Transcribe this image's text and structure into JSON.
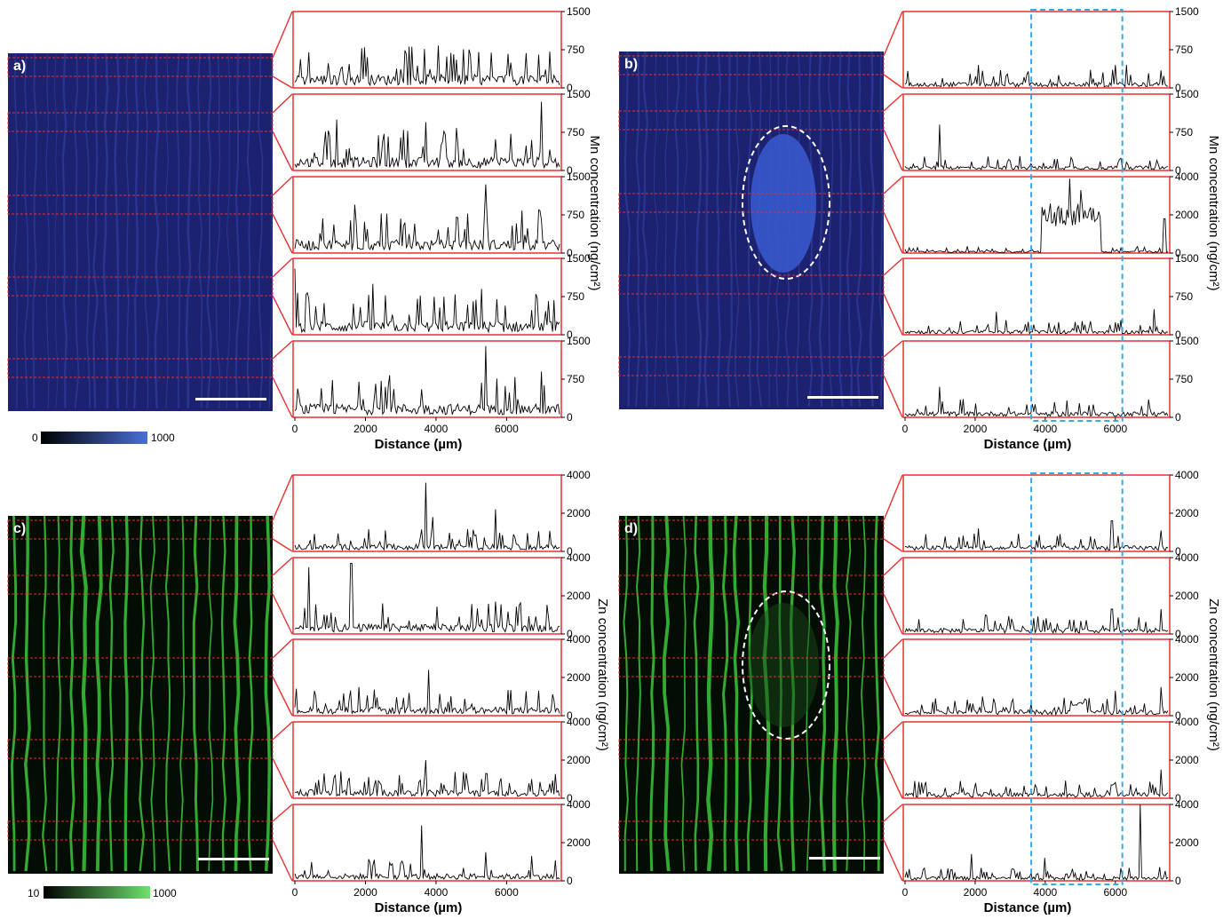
{
  "chart_data": [
    {
      "panel": "a)",
      "element": "Mn",
      "type": "line",
      "ylabel": "Mn concentration (ng/cm²)",
      "xlabel": "Distance (µm)",
      "x_ticks": [
        "0",
        "2000",
        "4000",
        "6000"
      ],
      "xlim": [
        0,
        7500
      ],
      "subplots": [
        {
          "ylim": [
            0,
            1500
          ],
          "y_ticks": [
            "0",
            "750",
            "1500"
          ],
          "typical_level": 350,
          "peaks": [
            [
              1900,
              780
            ],
            [
              400,
              700
            ],
            [
              6900,
              650
            ]
          ]
        },
        {
          "ylim": [
            0,
            1500
          ],
          "y_ticks": [
            "0",
            "750",
            "1500"
          ],
          "typical_level": 350,
          "peaks": [
            [
              7000,
              1350
            ],
            [
              1200,
              1000
            ],
            [
              3700,
              950
            ]
          ]
        },
        {
          "ylim": [
            0,
            1500
          ],
          "y_ticks": [
            "0",
            "750",
            "1500"
          ],
          "typical_level": 350,
          "peaks": [
            [
              5400,
              1350
            ],
            [
              1700,
              950
            ],
            [
              6900,
              850
            ]
          ]
        },
        {
          "ylim": [
            0,
            1500
          ],
          "y_ticks": [
            "0",
            "750",
            "1500"
          ],
          "typical_level": 350,
          "peaks": [
            [
              0,
              1300
            ],
            [
              2200,
              1000
            ],
            [
              5300,
              900
            ]
          ]
        },
        {
          "ylim": [
            0,
            1500
          ],
          "y_ticks": [
            "0",
            "750",
            "1500"
          ],
          "typical_level": 350,
          "peaks": [
            [
              5400,
              1400
            ],
            [
              1800,
              700
            ],
            [
              7000,
              900
            ]
          ]
        }
      ]
    },
    {
      "panel": "b)",
      "element": "Mn",
      "type": "line",
      "ylabel": "Mn concentration (ng/cm²)",
      "xlabel": "Distance (µm)",
      "x_ticks": [
        "0",
        "2000",
        "4000",
        "6000"
      ],
      "xlim": [
        0,
        7500
      ],
      "highlight_x_range": [
        3600,
        6200
      ],
      "subplots": [
        {
          "ylim": [
            0,
            1500
          ],
          "y_ticks": [
            "0",
            "750",
            "1500"
          ],
          "typical_level": 150,
          "peaks": [
            [
              2100,
              450
            ],
            [
              6000,
              450
            ],
            [
              6300,
              450
            ]
          ]
        },
        {
          "ylim": [
            0,
            1500
          ],
          "y_ticks": [
            "0",
            "750",
            "1500"
          ],
          "typical_level": 120,
          "peaks": [
            [
              1000,
              900
            ]
          ]
        },
        {
          "ylim": [
            0,
            4000
          ],
          "y_ticks": [
            "0",
            "2000",
            "4000"
          ],
          "typical_level": 150,
          "plateau": [
            3900,
            5600,
            2000
          ],
          "peaks": [
            [
              4700,
              3900
            ],
            [
              5000,
              3300
            ],
            [
              7400,
              1800
            ]
          ]
        },
        {
          "ylim": [
            0,
            1500
          ],
          "y_ticks": [
            "0",
            "750",
            "1500"
          ],
          "typical_level": 120,
          "peaks": [
            [
              2600,
              450
            ],
            [
              7100,
              500
            ]
          ]
        },
        {
          "ylim": [
            0,
            1500
          ],
          "y_ticks": [
            "0",
            "750",
            "1500"
          ],
          "typical_level": 150,
          "peaks": [
            [
              1000,
              600
            ]
          ]
        }
      ]
    },
    {
      "panel": "c)",
      "element": "Zn",
      "type": "line",
      "ylabel": "Zn concentration (ng/cm²)",
      "xlabel": "Distance (µm)",
      "x_ticks": [
        "0",
        "2000",
        "4000",
        "6000"
      ],
      "xlim": [
        0,
        7500
      ],
      "subplots": [
        {
          "ylim": [
            0,
            4000
          ],
          "y_ticks": [
            "0",
            "2000",
            "4000"
          ],
          "typical_level": 500,
          "peaks": [
            [
              3700,
              3600
            ],
            [
              5700,
              2200
            ],
            [
              3900,
              1800
            ]
          ]
        },
        {
          "ylim": [
            0,
            4000
          ],
          "y_ticks": [
            "0",
            "2000",
            "4000"
          ],
          "typical_level": 700,
          "peaks": [
            [
              400,
              3500
            ],
            [
              1600,
              3700
            ],
            [
              5700,
              1700
            ]
          ]
        },
        {
          "ylim": [
            0,
            4000
          ],
          "y_ticks": [
            "0",
            "2000",
            "4000"
          ],
          "typical_level": 600,
          "peaks": [
            [
              3800,
              2400
            ],
            [
              6900,
              1300
            ],
            [
              1800,
              1500
            ]
          ]
        },
        {
          "ylim": [
            0,
            4000
          ],
          "y_ticks": [
            "0",
            "2000",
            "4000"
          ],
          "typical_level": 600,
          "peaks": [
            [
              3700,
              2000
            ],
            [
              5400,
              1300
            ],
            [
              6700,
              1000
            ]
          ]
        },
        {
          "ylim": [
            0,
            4000
          ],
          "y_ticks": [
            "0",
            "2000",
            "4000"
          ],
          "typical_level": 500,
          "peaks": [
            [
              3600,
              2900
            ],
            [
              5400,
              1500
            ],
            [
              6700,
              1300
            ]
          ]
        }
      ]
    },
    {
      "panel": "d)",
      "element": "Zn",
      "type": "line",
      "ylabel": "Zn concentration (ng/cm²)",
      "xlabel": "Distance (µm)",
      "x_ticks": [
        "0",
        "2000",
        "4000",
        "6000"
      ],
      "xlim": [
        0,
        7500
      ],
      "highlight_x_range": [
        3600,
        6200
      ],
      "subplots": [
        {
          "ylim": [
            0,
            4000
          ],
          "y_ticks": [
            "0",
            "2000",
            "4000"
          ],
          "typical_level": 400,
          "peaks": [
            [
              5900,
              1600
            ],
            [
              2100,
              1200
            ],
            [
              7300,
              1100
            ]
          ]
        },
        {
          "ylim": [
            0,
            4000
          ],
          "y_ticks": [
            "0",
            "2000",
            "4000"
          ],
          "typical_level": 400,
          "peaks": [
            [
              5900,
              1300
            ],
            [
              7300,
              1300
            ],
            [
              2300,
              1000
            ]
          ]
        },
        {
          "ylim": [
            0,
            4000
          ],
          "y_ticks": [
            "0",
            "2000",
            "4000"
          ],
          "typical_level": 400,
          "plateau": [
            4700,
            5200,
            700
          ],
          "peaks": [
            [
              7300,
              1500
            ],
            [
              6000,
              1300
            ],
            [
              2200,
              1000
            ]
          ]
        },
        {
          "ylim": [
            0,
            4000
          ],
          "y_ticks": [
            "0",
            "2000",
            "4000"
          ],
          "typical_level": 400,
          "peaks": [
            [
              7300,
              1500
            ],
            [
              5900,
              700
            ],
            [
              2000,
              800
            ]
          ]
        },
        {
          "ylim": [
            0,
            4000
          ],
          "y_ticks": [
            "0",
            "2000",
            "4000"
          ],
          "typical_level": 300,
          "peaks": [
            [
              6700,
              4000
            ],
            [
              1900,
              1400
            ],
            [
              4000,
              1200
            ]
          ]
        }
      ]
    }
  ],
  "colorbars": {
    "mn": {
      "min_label": "0",
      "max_label": "1000",
      "color_low": "#000000",
      "color_high": "#4a6fd8"
    },
    "zn": {
      "min_label": "10",
      "max_label": "1000",
      "color_low": "#000000",
      "color_high": "#6fe06f"
    }
  },
  "colors": {
    "zoom_lines": "#e83030",
    "highlight_box": "#33aaee",
    "trace": "#000000",
    "mn_map_bg": "#1c2170",
    "mn_map_stripe": "#3547a8",
    "zn_map_bg": "#040d04",
    "zn_map_stripe": "#39c93a"
  }
}
